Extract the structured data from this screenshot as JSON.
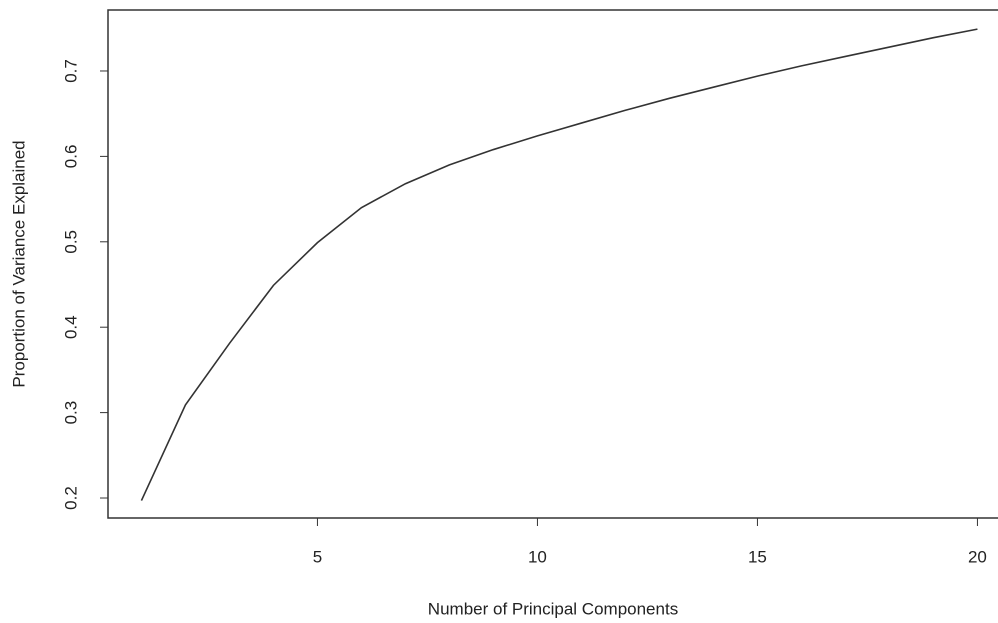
{
  "chart_data": {
    "type": "line",
    "x_label": "Number of Principal Components",
    "y_label": "Proportion of Variance Explained",
    "x": [
      1,
      2,
      3,
      4,
      5,
      6,
      7,
      8,
      9,
      10,
      11,
      12,
      13,
      14,
      15,
      16,
      17,
      18,
      19,
      20
    ],
    "series": [
      {
        "color": "#333333",
        "values": [
          0.197,
          0.309,
          0.381,
          0.449,
          0.499,
          0.54,
          0.568,
          0.59,
          0.608,
          0.624,
          0.639,
          0.654,
          0.668,
          0.681,
          0.694,
          0.706,
          0.717,
          0.728,
          0.739,
          0.749
        ]
      }
    ],
    "xlim": [
      0.24,
      20.76
    ],
    "ylim": [
      0.1766,
      0.7714
    ],
    "xticks": [
      5,
      10,
      15,
      20
    ],
    "yticks": [
      0.2,
      0.3,
      0.4,
      0.5,
      0.6,
      0.7
    ]
  }
}
